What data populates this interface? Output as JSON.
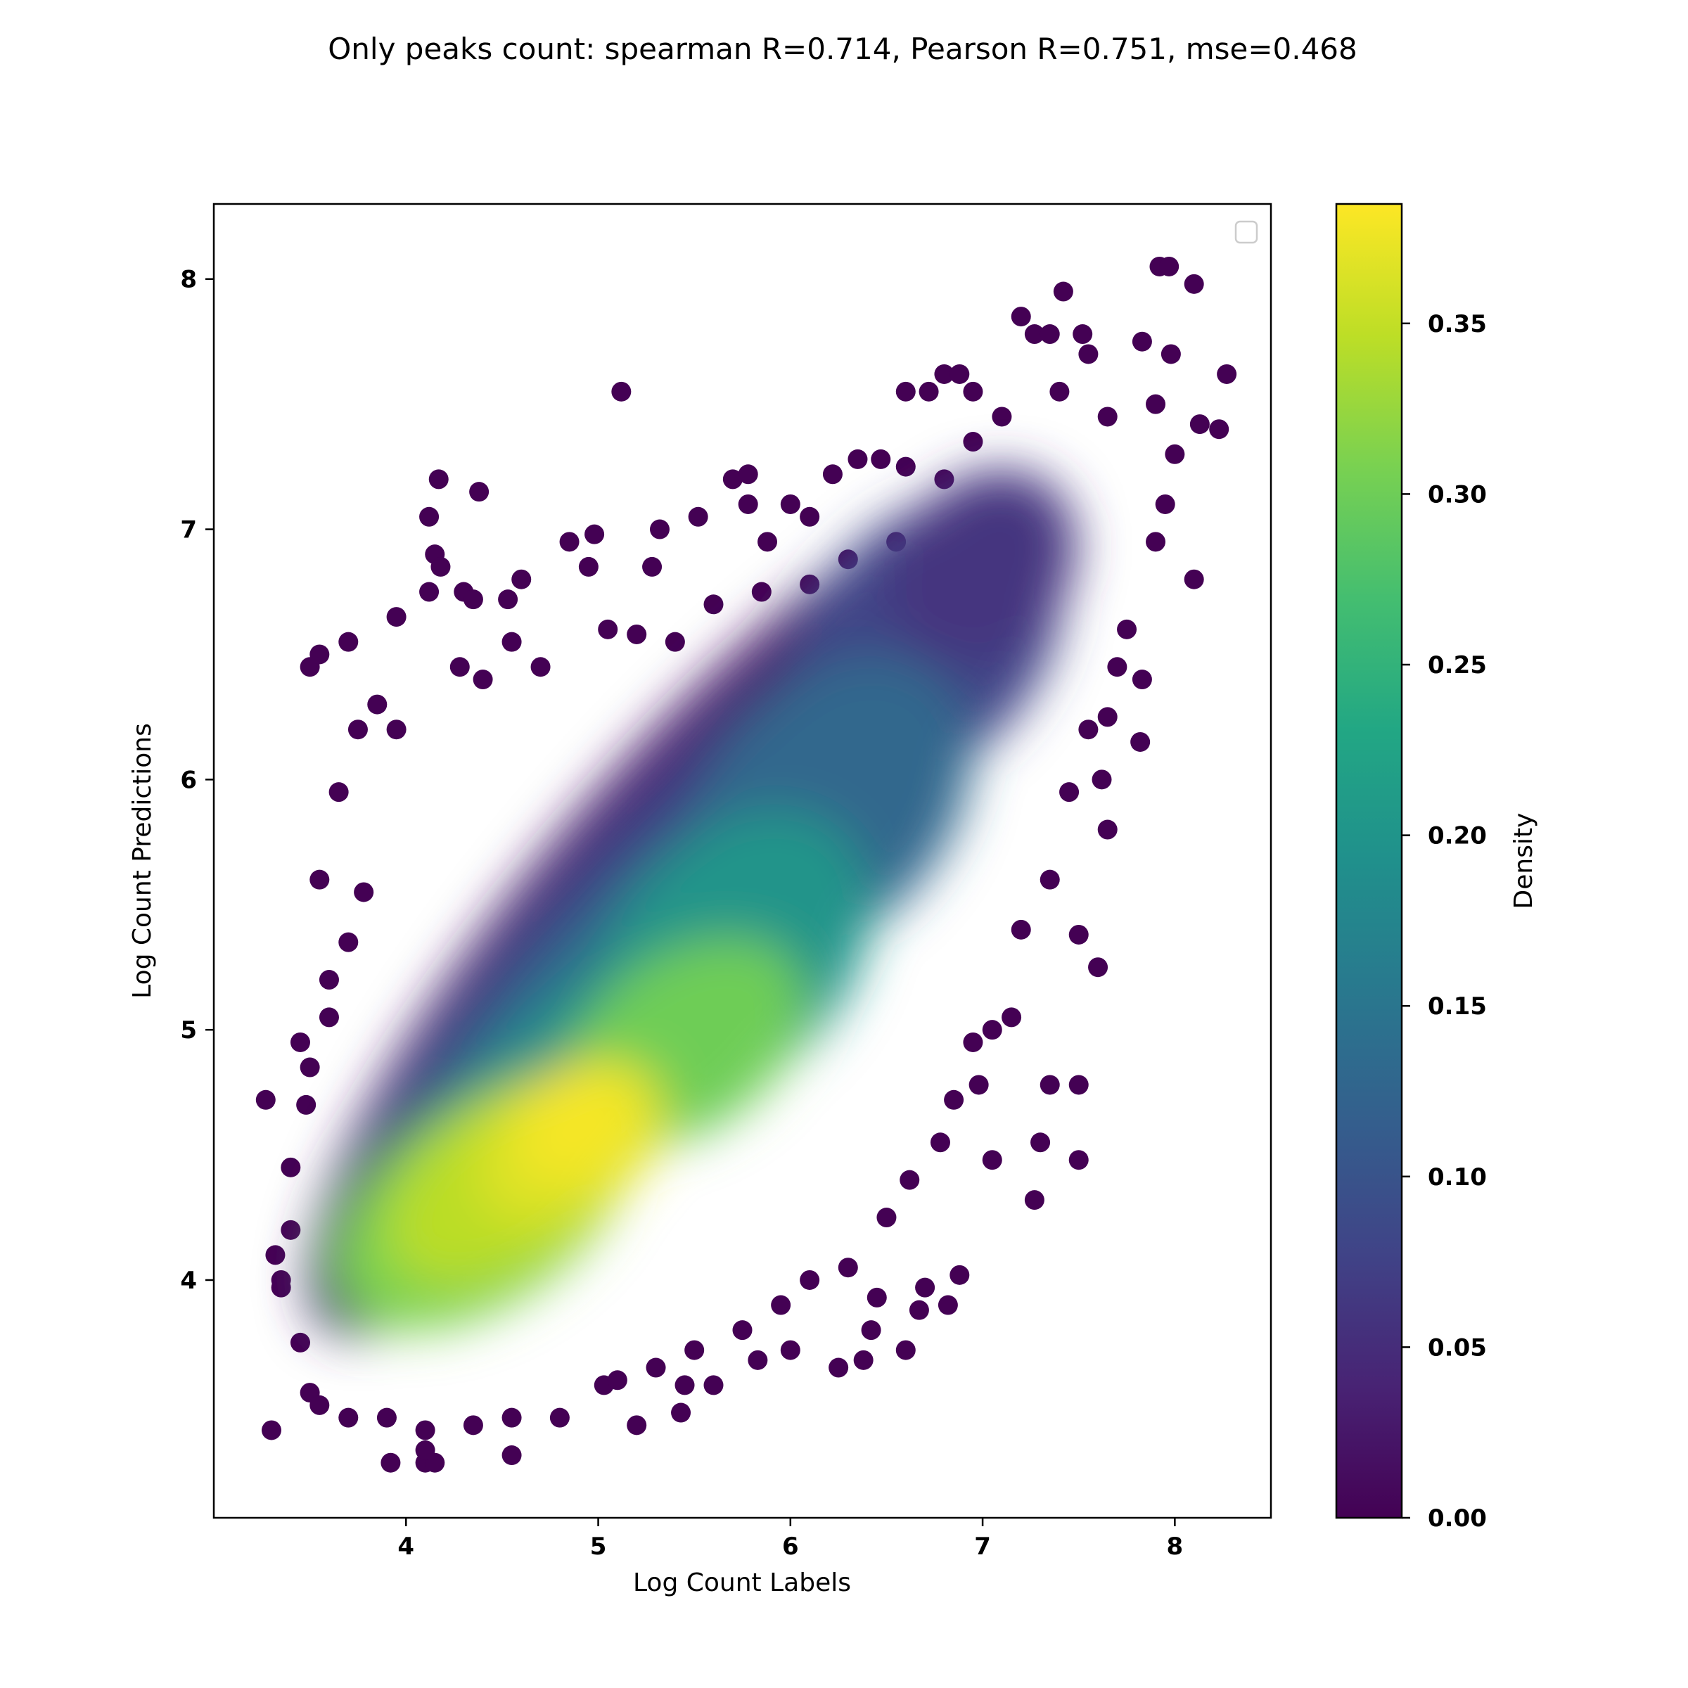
{
  "chart_data": {
    "type": "scatter",
    "title": "Only peaks count: spearman R=0.714, Pearson R=0.751, mse=0.468",
    "xlabel": "Log Count Labels",
    "ylabel": "Log Count Predictions",
    "xlim": [
      3.0,
      8.5
    ],
    "ylim": [
      3.05,
      8.3
    ],
    "x_ticks": [
      4,
      5,
      6,
      7,
      8
    ],
    "y_ticks": [
      4,
      5,
      6,
      7,
      8
    ],
    "x_tick_labels": [
      "4",
      "5",
      "6",
      "7",
      "8"
    ],
    "y_tick_labels": [
      "4",
      "5",
      "6",
      "7",
      "8"
    ],
    "grid": false,
    "legend": "top-right (empty)",
    "colormap": "viridis",
    "colorbar": {
      "label": "Density",
      "range": [
        0.0,
        0.385
      ],
      "ticks": [
        0.0,
        0.05,
        0.1,
        0.15,
        0.2,
        0.25,
        0.3,
        0.35
      ],
      "tick_labels": [
        "0.00",
        "0.05",
        "0.10",
        "0.15",
        "0.20",
        "0.25",
        "0.30",
        "0.35"
      ]
    },
    "density_peaks": [
      {
        "x": 4.9,
        "y": 4.6,
        "density": 0.38
      },
      {
        "x": 4.45,
        "y": 4.35,
        "density": 0.35
      },
      {
        "x": 5.5,
        "y": 4.95,
        "density": 0.31
      }
    ],
    "outlier_points": [
      [
        3.3,
        3.4
      ],
      [
        3.27,
        4.72
      ],
      [
        3.32,
        4.1
      ],
      [
        3.5,
        6.45
      ],
      [
        3.55,
        6.5
      ],
      [
        3.7,
        6.55
      ],
      [
        3.95,
        6.65
      ],
      [
        4.12,
        7.05
      ],
      [
        4.17,
        7.2
      ],
      [
        4.38,
        7.15
      ],
      [
        4.15,
        6.9
      ],
      [
        4.18,
        6.85
      ],
      [
        4.12,
        6.75
      ],
      [
        4.3,
        6.75
      ],
      [
        4.35,
        6.72
      ],
      [
        4.53,
        6.72
      ],
      [
        4.6,
        6.8
      ],
      [
        4.85,
        6.95
      ],
      [
        4.98,
        6.98
      ],
      [
        4.95,
        6.85
      ],
      [
        5.12,
        7.55
      ],
      [
        5.32,
        7.0
      ],
      [
        5.52,
        7.05
      ],
      [
        5.28,
        6.85
      ],
      [
        5.7,
        7.2
      ],
      [
        5.78,
        7.22
      ],
      [
        5.78,
        7.1
      ],
      [
        5.88,
        6.95
      ],
      [
        6.0,
        7.1
      ],
      [
        6.1,
        7.05
      ],
      [
        6.22,
        7.22
      ],
      [
        6.35,
        7.28
      ],
      [
        6.47,
        7.28
      ],
      [
        6.6,
        7.25
      ],
      [
        6.6,
        7.55
      ],
      [
        6.72,
        7.55
      ],
      [
        6.8,
        7.62
      ],
      [
        6.88,
        7.62
      ],
      [
        6.95,
        7.55
      ],
      [
        7.2,
        7.85
      ],
      [
        7.27,
        7.78
      ],
      [
        7.35,
        7.78
      ],
      [
        7.42,
        7.95
      ],
      [
        7.52,
        7.78
      ],
      [
        7.55,
        7.7
      ],
      [
        7.83,
        7.75
      ],
      [
        7.92,
        8.05
      ],
      [
        7.97,
        8.05
      ],
      [
        8.1,
        7.98
      ],
      [
        7.98,
        7.7
      ],
      [
        8.27,
        7.62
      ],
      [
        8.13,
        7.42
      ],
      [
        8.23,
        7.4
      ],
      [
        8.1,
        6.8
      ],
      [
        7.83,
        6.4
      ],
      [
        7.82,
        6.15
      ],
      [
        7.65,
        6.25
      ],
      [
        7.62,
        6.0
      ],
      [
        7.65,
        5.8
      ],
      [
        7.6,
        5.25
      ],
      [
        7.5,
        5.38
      ],
      [
        7.5,
        4.78
      ],
      [
        7.5,
        4.48
      ],
      [
        7.35,
        4.78
      ],
      [
        7.3,
        4.55
      ],
      [
        7.27,
        4.32
      ],
      [
        7.05,
        4.48
      ],
      [
        6.98,
        4.78
      ],
      [
        6.85,
        4.72
      ],
      [
        6.88,
        4.02
      ],
      [
        6.82,
        3.9
      ],
      [
        6.7,
        3.97
      ],
      [
        6.67,
        3.88
      ],
      [
        6.6,
        3.72
      ],
      [
        6.45,
        3.93
      ],
      [
        6.42,
        3.8
      ],
      [
        6.38,
        3.68
      ],
      [
        6.25,
        3.65
      ],
      [
        6.0,
        3.72
      ],
      [
        5.83,
        3.68
      ],
      [
        5.6,
        3.58
      ],
      [
        5.45,
        3.58
      ],
      [
        5.43,
        3.47
      ],
      [
        5.2,
        3.42
      ],
      [
        5.03,
        3.58
      ],
      [
        4.55,
        3.3
      ],
      [
        4.1,
        3.27
      ],
      [
        4.15,
        3.27
      ],
      [
        3.92,
        3.27
      ],
      [
        4.1,
        3.32
      ],
      [
        3.35,
        4.0
      ],
      [
        3.35,
        3.97
      ],
      [
        3.5,
        3.55
      ],
      [
        3.45,
        4.95
      ],
      [
        3.6,
        5.2
      ],
      [
        3.55,
        5.6
      ],
      [
        3.65,
        5.95
      ],
      [
        3.75,
        6.2
      ],
      [
        3.85,
        6.3
      ],
      [
        3.95,
        6.2
      ],
      [
        4.28,
        6.45
      ],
      [
        4.4,
        6.4
      ],
      [
        4.55,
        6.55
      ],
      [
        4.7,
        6.45
      ],
      [
        5.05,
        6.6
      ],
      [
        5.2,
        6.58
      ],
      [
        5.4,
        6.55
      ],
      [
        5.6,
        6.7
      ],
      [
        5.85,
        6.75
      ],
      [
        6.1,
        6.78
      ],
      [
        6.3,
        6.88
      ],
      [
        6.55,
        6.95
      ],
      [
        6.8,
        7.2
      ],
      [
        6.95,
        7.35
      ],
      [
        7.1,
        7.45
      ],
      [
        7.4,
        7.55
      ],
      [
        7.65,
        7.45
      ],
      [
        7.9,
        7.5
      ],
      [
        8.0,
        7.3
      ],
      [
        7.95,
        7.1
      ],
      [
        7.9,
        6.95
      ],
      [
        7.75,
        6.6
      ],
      [
        7.7,
        6.45
      ],
      [
        7.55,
        6.2
      ],
      [
        7.45,
        5.95
      ],
      [
        7.35,
        5.6
      ],
      [
        7.2,
        5.4
      ],
      [
        7.15,
        5.05
      ],
      [
        7.05,
        5.0
      ],
      [
        6.95,
        4.95
      ],
      [
        6.78,
        4.55
      ],
      [
        6.62,
        4.4
      ],
      [
        6.5,
        4.25
      ],
      [
        6.3,
        4.05
      ],
      [
        6.1,
        4.0
      ],
      [
        5.95,
        3.9
      ],
      [
        5.75,
        3.8
      ],
      [
        5.5,
        3.72
      ],
      [
        5.3,
        3.65
      ],
      [
        5.1,
        3.6
      ],
      [
        4.8,
        3.45
      ],
      [
        4.55,
        3.45
      ],
      [
        4.35,
        3.42
      ],
      [
        4.1,
        3.4
      ],
      [
        3.9,
        3.45
      ],
      [
        3.7,
        3.45
      ],
      [
        3.55,
        3.5
      ],
      [
        3.45,
        3.75
      ],
      [
        3.4,
        4.2
      ],
      [
        3.4,
        4.45
      ],
      [
        3.48,
        4.7
      ],
      [
        3.5,
        4.85
      ],
      [
        3.6,
        5.05
      ],
      [
        3.7,
        5.35
      ],
      [
        3.78,
        5.55
      ]
    ]
  }
}
